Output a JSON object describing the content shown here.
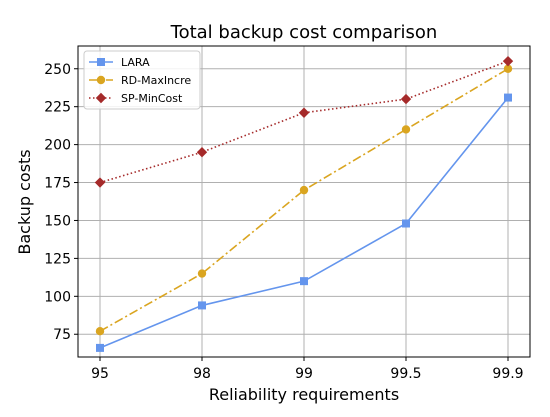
{
  "chart_data": {
    "type": "line",
    "title": "Total backup cost comparison",
    "xlabel": "Reliability requirements",
    "ylabel": "Backup costs",
    "categories": [
      "95",
      "98",
      "99",
      "99.5",
      "99.9"
    ],
    "ylim": [
      60,
      265
    ],
    "yticks": [
      75,
      100,
      125,
      150,
      175,
      200,
      225,
      250
    ],
    "grid": true,
    "legend_position": "top-left",
    "series": [
      {
        "name": "LARA",
        "values": [
          66,
          94,
          110,
          148,
          231
        ],
        "color": "#6495ED",
        "marker": "square",
        "linestyle": "solid"
      },
      {
        "name": "RD-MaxIncre",
        "values": [
          77,
          115,
          170,
          210,
          250
        ],
        "color": "#DAA520",
        "marker": "circle",
        "linestyle": "dashdot"
      },
      {
        "name": "SP-MinCost",
        "values": [
          175,
          195,
          221,
          230,
          255
        ],
        "color": "#A52A2A",
        "marker": "diamond",
        "linestyle": "dotted"
      }
    ]
  }
}
